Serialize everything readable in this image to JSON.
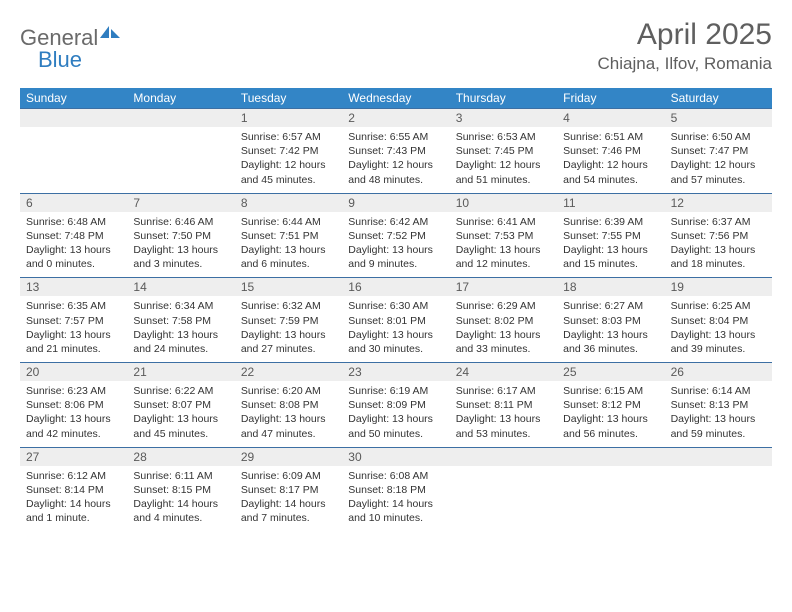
{
  "brand": {
    "general": "General",
    "blue": "Blue",
    "accent_color": "#2f7dc0",
    "text_color": "#6a6a6a"
  },
  "header": {
    "month_year": "April 2025",
    "location": "Chiajna, Ilfov, Romania"
  },
  "style": {
    "header_row_bg": "#3385c6",
    "header_row_fg": "#ffffff",
    "daynum_bg": "#eeeeee",
    "daynum_border": "#3c6fa3",
    "body_fg": "#333333",
    "title_fg": "#5f5f5f",
    "page_bg": "#ffffff",
    "dow_fontsize": 12,
    "daynum_fontsize": 12,
    "body_fontsize": 10.5,
    "title_fontsize": 30,
    "location_fontsize": 17
  },
  "days_of_week": [
    "Sunday",
    "Monday",
    "Tuesday",
    "Wednesday",
    "Thursday",
    "Friday",
    "Saturday"
  ],
  "weeks": [
    [
      {
        "blank": true
      },
      {
        "blank": true
      },
      {
        "num": "1",
        "sunrise": "Sunrise: 6:57 AM",
        "sunset": "Sunset: 7:42 PM",
        "daylight": "Daylight: 12 hours and 45 minutes."
      },
      {
        "num": "2",
        "sunrise": "Sunrise: 6:55 AM",
        "sunset": "Sunset: 7:43 PM",
        "daylight": "Daylight: 12 hours and 48 minutes."
      },
      {
        "num": "3",
        "sunrise": "Sunrise: 6:53 AM",
        "sunset": "Sunset: 7:45 PM",
        "daylight": "Daylight: 12 hours and 51 minutes."
      },
      {
        "num": "4",
        "sunrise": "Sunrise: 6:51 AM",
        "sunset": "Sunset: 7:46 PM",
        "daylight": "Daylight: 12 hours and 54 minutes."
      },
      {
        "num": "5",
        "sunrise": "Sunrise: 6:50 AM",
        "sunset": "Sunset: 7:47 PM",
        "daylight": "Daylight: 12 hours and 57 minutes."
      }
    ],
    [
      {
        "num": "6",
        "sunrise": "Sunrise: 6:48 AM",
        "sunset": "Sunset: 7:48 PM",
        "daylight": "Daylight: 13 hours and 0 minutes."
      },
      {
        "num": "7",
        "sunrise": "Sunrise: 6:46 AM",
        "sunset": "Sunset: 7:50 PM",
        "daylight": "Daylight: 13 hours and 3 minutes."
      },
      {
        "num": "8",
        "sunrise": "Sunrise: 6:44 AM",
        "sunset": "Sunset: 7:51 PM",
        "daylight": "Daylight: 13 hours and 6 minutes."
      },
      {
        "num": "9",
        "sunrise": "Sunrise: 6:42 AM",
        "sunset": "Sunset: 7:52 PM",
        "daylight": "Daylight: 13 hours and 9 minutes."
      },
      {
        "num": "10",
        "sunrise": "Sunrise: 6:41 AM",
        "sunset": "Sunset: 7:53 PM",
        "daylight": "Daylight: 13 hours and 12 minutes."
      },
      {
        "num": "11",
        "sunrise": "Sunrise: 6:39 AM",
        "sunset": "Sunset: 7:55 PM",
        "daylight": "Daylight: 13 hours and 15 minutes."
      },
      {
        "num": "12",
        "sunrise": "Sunrise: 6:37 AM",
        "sunset": "Sunset: 7:56 PM",
        "daylight": "Daylight: 13 hours and 18 minutes."
      }
    ],
    [
      {
        "num": "13",
        "sunrise": "Sunrise: 6:35 AM",
        "sunset": "Sunset: 7:57 PM",
        "daylight": "Daylight: 13 hours and 21 minutes."
      },
      {
        "num": "14",
        "sunrise": "Sunrise: 6:34 AM",
        "sunset": "Sunset: 7:58 PM",
        "daylight": "Daylight: 13 hours and 24 minutes."
      },
      {
        "num": "15",
        "sunrise": "Sunrise: 6:32 AM",
        "sunset": "Sunset: 7:59 PM",
        "daylight": "Daylight: 13 hours and 27 minutes."
      },
      {
        "num": "16",
        "sunrise": "Sunrise: 6:30 AM",
        "sunset": "Sunset: 8:01 PM",
        "daylight": "Daylight: 13 hours and 30 minutes."
      },
      {
        "num": "17",
        "sunrise": "Sunrise: 6:29 AM",
        "sunset": "Sunset: 8:02 PM",
        "daylight": "Daylight: 13 hours and 33 minutes."
      },
      {
        "num": "18",
        "sunrise": "Sunrise: 6:27 AM",
        "sunset": "Sunset: 8:03 PM",
        "daylight": "Daylight: 13 hours and 36 minutes."
      },
      {
        "num": "19",
        "sunrise": "Sunrise: 6:25 AM",
        "sunset": "Sunset: 8:04 PM",
        "daylight": "Daylight: 13 hours and 39 minutes."
      }
    ],
    [
      {
        "num": "20",
        "sunrise": "Sunrise: 6:23 AM",
        "sunset": "Sunset: 8:06 PM",
        "daylight": "Daylight: 13 hours and 42 minutes."
      },
      {
        "num": "21",
        "sunrise": "Sunrise: 6:22 AM",
        "sunset": "Sunset: 8:07 PM",
        "daylight": "Daylight: 13 hours and 45 minutes."
      },
      {
        "num": "22",
        "sunrise": "Sunrise: 6:20 AM",
        "sunset": "Sunset: 8:08 PM",
        "daylight": "Daylight: 13 hours and 47 minutes."
      },
      {
        "num": "23",
        "sunrise": "Sunrise: 6:19 AM",
        "sunset": "Sunset: 8:09 PM",
        "daylight": "Daylight: 13 hours and 50 minutes."
      },
      {
        "num": "24",
        "sunrise": "Sunrise: 6:17 AM",
        "sunset": "Sunset: 8:11 PM",
        "daylight": "Daylight: 13 hours and 53 minutes."
      },
      {
        "num": "25",
        "sunrise": "Sunrise: 6:15 AM",
        "sunset": "Sunset: 8:12 PM",
        "daylight": "Daylight: 13 hours and 56 minutes."
      },
      {
        "num": "26",
        "sunrise": "Sunrise: 6:14 AM",
        "sunset": "Sunset: 8:13 PM",
        "daylight": "Daylight: 13 hours and 59 minutes."
      }
    ],
    [
      {
        "num": "27",
        "sunrise": "Sunrise: 6:12 AM",
        "sunset": "Sunset: 8:14 PM",
        "daylight": "Daylight: 14 hours and 1 minute."
      },
      {
        "num": "28",
        "sunrise": "Sunrise: 6:11 AM",
        "sunset": "Sunset: 8:15 PM",
        "daylight": "Daylight: 14 hours and 4 minutes."
      },
      {
        "num": "29",
        "sunrise": "Sunrise: 6:09 AM",
        "sunset": "Sunset: 8:17 PM",
        "daylight": "Daylight: 14 hours and 7 minutes."
      },
      {
        "num": "30",
        "sunrise": "Sunrise: 6:08 AM",
        "sunset": "Sunset: 8:18 PM",
        "daylight": "Daylight: 14 hours and 10 minutes."
      },
      {
        "blank": true
      },
      {
        "blank": true
      },
      {
        "blank": true
      }
    ]
  ]
}
